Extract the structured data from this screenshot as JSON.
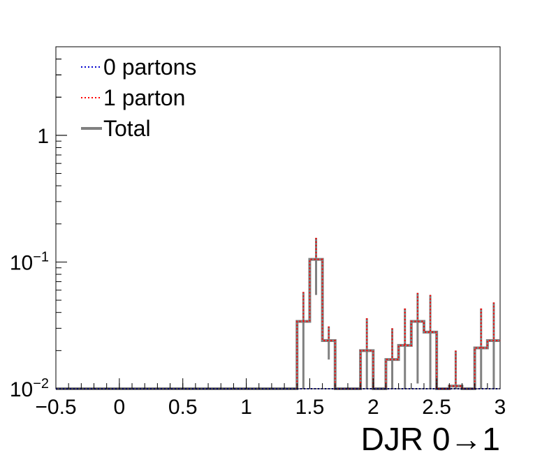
{
  "chart_data": {
    "type": "line",
    "style": "step-histogram",
    "title": "",
    "xlabel": "DJR 0→1",
    "ylabel": "",
    "xlim": [
      -0.5,
      3.0
    ],
    "ylim": [
      0.01,
      5.0
    ],
    "ylog": true,
    "grid": false,
    "legend_position": "top-left",
    "x_ticks": [
      -0.5,
      0,
      0.5,
      1,
      1.5,
      2,
      2.5,
      3
    ],
    "x_tick_labels": [
      "−0.5",
      "0",
      "0.5",
      "1",
      "1.5",
      "2",
      "2.5",
      "3"
    ],
    "y_ticks": [
      {
        "value": 0.01,
        "base": "10",
        "exp": "−2"
      },
      {
        "value": 0.1,
        "base": "10",
        "exp": "−1"
      },
      {
        "value": 1,
        "base": "1",
        "exp": ""
      }
    ],
    "bin_edges": [
      -0.5,
      -0.4,
      -0.3,
      -0.2,
      -0.1,
      0.0,
      0.1,
      0.2,
      0.3,
      0.4,
      0.5,
      0.6,
      0.7,
      0.8,
      0.9,
      1.0,
      1.1,
      1.2,
      1.3,
      1.4,
      1.5,
      1.6,
      1.7,
      1.8,
      1.9,
      2.0,
      2.1,
      2.2,
      2.3,
      2.4,
      2.5,
      2.6,
      2.7,
      2.8,
      2.9,
      3.0
    ],
    "series": [
      {
        "name": "0 partons",
        "color": "#0000cc",
        "line": "dotted",
        "values": [
          0.01,
          0.01,
          0.01,
          0.01,
          0.01,
          0.01,
          0.01,
          0.01,
          0.01,
          0.01,
          0.01,
          0.01,
          0.01,
          0.01,
          0.01,
          0.01,
          0.01,
          0.01,
          0.01,
          0.01,
          0.01,
          0.01,
          0.01,
          0.01,
          0.01,
          0.01,
          0.01,
          0.01,
          0.01,
          0.01,
          0.01,
          0.01,
          0.01,
          0.01,
          0.01
        ]
      },
      {
        "name": "1 parton",
        "color": "#ff0000",
        "line": "dotted",
        "values": [
          0.01,
          0.01,
          0.01,
          0.01,
          0.01,
          0.01,
          0.01,
          0.01,
          0.01,
          0.01,
          0.01,
          0.01,
          0.01,
          0.01,
          0.01,
          0.01,
          0.01,
          0.01,
          0.01,
          0.034,
          0.105,
          0.024,
          0.01,
          0.01,
          0.02,
          0.01,
          0.017,
          0.022,
          0.034,
          0.028,
          0.01,
          0.0105,
          0.01,
          0.021,
          0.024
        ]
      },
      {
        "name": "Total",
        "color": "#808080",
        "line": "solid",
        "values": [
          0.01,
          0.01,
          0.01,
          0.01,
          0.01,
          0.01,
          0.01,
          0.01,
          0.01,
          0.01,
          0.01,
          0.01,
          0.01,
          0.01,
          0.01,
          0.01,
          0.01,
          0.01,
          0.01,
          0.034,
          0.105,
          0.024,
          0.01,
          0.01,
          0.02,
          0.01,
          0.017,
          0.022,
          0.034,
          0.028,
          0.01,
          0.0105,
          0.01,
          0.021,
          0.024
        ]
      }
    ],
    "total_error_upper": [
      0.01,
      0.01,
      0.01,
      0.01,
      0.01,
      0.01,
      0.01,
      0.01,
      0.01,
      0.01,
      0.01,
      0.01,
      0.01,
      0.01,
      0.01,
      0.01,
      0.01,
      0.01,
      0.01,
      0.058,
      0.155,
      0.031,
      0.01,
      0.01,
      0.036,
      0.01,
      0.03,
      0.043,
      0.057,
      0.055,
      0.01,
      0.02,
      0.01,
      0.043,
      0.048
    ]
  }
}
